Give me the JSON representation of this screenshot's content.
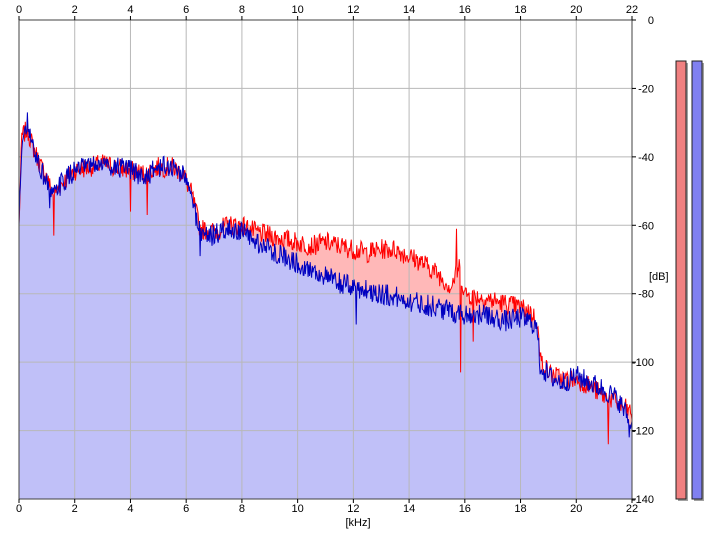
{
  "chart_data": {
    "type": "area",
    "xlabel": "[kHz]",
    "ylabel": "[dB]",
    "xlim": [
      0,
      22
    ],
    "ylim": [
      -140,
      0
    ],
    "xticks": [
      0,
      2,
      4,
      6,
      8,
      10,
      12,
      14,
      16,
      18,
      20,
      22
    ],
    "xtick_labels": [
      "0",
      "2",
      "4",
      "6",
      "8",
      "10",
      "12",
      "14",
      "16",
      "18",
      "20",
      "22"
    ],
    "yticks": [
      0,
      -20,
      -40,
      -60,
      -80,
      -100,
      -120,
      -140
    ],
    "ytick_labels": [
      "0",
      "-20",
      "-40",
      "-60",
      "-80",
      "-100",
      "-120",
      "-140"
    ],
    "grid": true,
    "legend": "none",
    "series": [
      {
        "color": "#ff0000",
        "fill": "#ffb8b8",
        "x": [
          0,
          0.1,
          0.3,
          0.5,
          0.8,
          1.0,
          1.2,
          1.5,
          2.0,
          2.5,
          3.0,
          3.5,
          4.0,
          4.5,
          5.0,
          5.5,
          5.9,
          6.2,
          6.5,
          7.0,
          7.5,
          8.0,
          8.5,
          9.0,
          9.5,
          10.0,
          10.5,
          11.0,
          11.5,
          12.0,
          12.5,
          13.0,
          13.5,
          14.0,
          14.5,
          15.0,
          15.5,
          15.8,
          16.0,
          16.5,
          17.0,
          17.5,
          18.0,
          18.3,
          18.5,
          18.6,
          18.7,
          19.0,
          19.5,
          20.0,
          20.5,
          21.0,
          21.5,
          22.0
        ],
        "values": [
          -60,
          -34,
          -32,
          -37,
          -43,
          -46,
          -51,
          -48,
          -44,
          -43,
          -42,
          -43,
          -44,
          -45,
          -43,
          -43,
          -45,
          -51,
          -61,
          -62,
          -60,
          -60,
          -62,
          -63,
          -64,
          -65,
          -66,
          -65,
          -66,
          -67,
          -68,
          -67,
          -67,
          -69,
          -71,
          -74,
          -78,
          -72,
          -80,
          -81,
          -82,
          -83,
          -84,
          -85,
          -87,
          -88,
          -99,
          -103,
          -105,
          -105,
          -107,
          -110,
          -112,
          -115
        ],
        "noise_db": 3.0,
        "spikes": [
          {
            "x": 1.25,
            "db": -63
          },
          {
            "x": 4.0,
            "db": -56
          },
          {
            "x": 4.6,
            "db": -57
          },
          {
            "x": 15.7,
            "db": -61
          },
          {
            "x": 15.85,
            "db": -103
          },
          {
            "x": 16.3,
            "db": -94
          },
          {
            "x": 21.15,
            "db": -124
          }
        ]
      },
      {
        "color": "#0000c0",
        "fill": "#c0c0f8",
        "x": [
          0,
          0.1,
          0.3,
          0.5,
          0.8,
          1.0,
          1.2,
          1.5,
          2.0,
          2.5,
          3.0,
          3.5,
          4.0,
          4.5,
          5.0,
          5.5,
          5.9,
          6.2,
          6.5,
          7.0,
          7.5,
          8.0,
          8.5,
          9.0,
          9.5,
          10.0,
          10.5,
          11.0,
          11.5,
          12.0,
          12.5,
          13.0,
          13.5,
          14.0,
          14.5,
          15.0,
          15.5,
          16.0,
          16.5,
          17.0,
          17.5,
          18.0,
          18.3,
          18.5,
          18.6,
          18.7,
          19.0,
          19.5,
          20.0,
          20.5,
          21.0,
          21.5,
          22.0
        ],
        "values": [
          -60,
          -36,
          -32,
          -37,
          -44,
          -47,
          -52,
          -48,
          -44,
          -43,
          -42,
          -43,
          -44,
          -46,
          -43,
          -43,
          -45,
          -52,
          -62,
          -63,
          -61,
          -62,
          -65,
          -67,
          -69,
          -71,
          -73,
          -75,
          -77,
          -78,
          -79,
          -80,
          -81,
          -82,
          -83,
          -84,
          -85,
          -86,
          -86,
          -87,
          -88,
          -87,
          -88,
          -89,
          -91,
          -101,
          -104,
          -106,
          -104,
          -106,
          -108,
          -111,
          -118
        ],
        "noise_db": 3.2,
        "spikes": [
          {
            "x": 0.3,
            "db": -27
          },
          {
            "x": 1.1,
            "db": -55
          },
          {
            "x": 6.5,
            "db": -69
          },
          {
            "x": 12.1,
            "db": -89
          },
          {
            "x": 21.9,
            "db": -122
          }
        ]
      }
    ],
    "level_meters": [
      {
        "color": "#f08080",
        "level": 1.0
      },
      {
        "color": "#8080f0",
        "level": 1.0
      }
    ]
  }
}
